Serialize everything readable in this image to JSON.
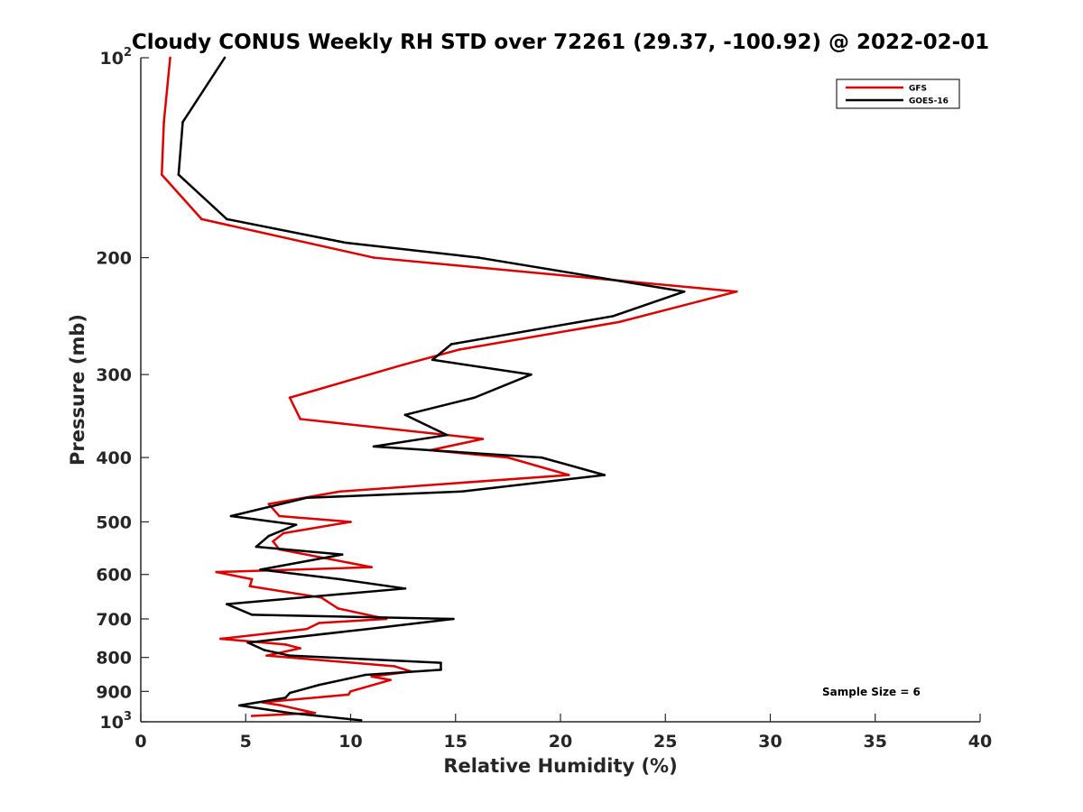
{
  "chart_data": {
    "type": "line",
    "title": "Cloudy CONUS Weekly RH STD over 72261 (29.37, -100.92) @ 2022-02-01",
    "xlabel": "Relative Humidity (%)",
    "ylabel": "Pressure (mb)",
    "xlim": [
      0,
      40
    ],
    "ylim": [
      100,
      1000
    ],
    "y_scale": "log",
    "y_reversed": true,
    "grid": false,
    "legend_position": "top-right",
    "x_ticks": [
      "0",
      "5",
      "10",
      "15",
      "20",
      "25",
      "30",
      "35",
      "40"
    ],
    "y_ticks": [
      {
        "value": 100,
        "base": "10",
        "exp": "2"
      },
      {
        "value": 200,
        "label": "200"
      },
      {
        "value": 300,
        "label": "300"
      },
      {
        "value": 400,
        "label": "400"
      },
      {
        "value": 500,
        "label": "500"
      },
      {
        "value": 600,
        "label": "600"
      },
      {
        "value": 700,
        "label": "700"
      },
      {
        "value": 800,
        "label": "800"
      },
      {
        "value": 900,
        "label": "900"
      },
      {
        "value": 1000,
        "base": "10",
        "exp": "3"
      }
    ],
    "annotation": "Sample Size = 6",
    "series": [
      {
        "name": "GFS",
        "color": "#dd0000",
        "points": [
          [
            1.4,
            100
          ],
          [
            1.1,
            125
          ],
          [
            1.0,
            150
          ],
          [
            2.9,
            175
          ],
          [
            11.1,
            200
          ],
          [
            28.4,
            225
          ],
          [
            22.8,
            250
          ],
          [
            15.2,
            275
          ],
          [
            12.5,
            290
          ],
          [
            7.1,
            325
          ],
          [
            7.6,
            350
          ],
          [
            16.3,
            375
          ],
          [
            13.8,
            390
          ],
          [
            17.5,
            400
          ],
          [
            20.4,
            425
          ],
          [
            9.5,
            450
          ],
          [
            6.1,
            470
          ],
          [
            6.6,
            490
          ],
          [
            10.0,
            500
          ],
          [
            6.8,
            520
          ],
          [
            6.3,
            535
          ],
          [
            6.6,
            550
          ],
          [
            11.0,
            585
          ],
          [
            3.6,
            595
          ],
          [
            5.3,
            610
          ],
          [
            5.2,
            625
          ],
          [
            8.6,
            650
          ],
          [
            9.4,
            675
          ],
          [
            11.7,
            700
          ],
          [
            8.5,
            710
          ],
          [
            7.9,
            725
          ],
          [
            3.8,
            750
          ],
          [
            6.9,
            765
          ],
          [
            7.6,
            775
          ],
          [
            6.0,
            795
          ],
          [
            12.1,
            825
          ],
          [
            12.9,
            840
          ],
          [
            11.0,
            855
          ],
          [
            11.9,
            865
          ],
          [
            10.0,
            900
          ],
          [
            9.9,
            910
          ],
          [
            5.8,
            935
          ],
          [
            6.7,
            945
          ],
          [
            8.3,
            970
          ],
          [
            5.3,
            980
          ]
        ]
      },
      {
        "name": "GOES-16",
        "color": "#000000",
        "points": [
          [
            4.0,
            100
          ],
          [
            2.0,
            125
          ],
          [
            1.8,
            150
          ],
          [
            4.1,
            175
          ],
          [
            9.8,
            190
          ],
          [
            16.1,
            200
          ],
          [
            25.9,
            225
          ],
          [
            22.5,
            245
          ],
          [
            14.8,
            270
          ],
          [
            13.9,
            285
          ],
          [
            18.6,
            300
          ],
          [
            15.9,
            325
          ],
          [
            12.6,
            345
          ],
          [
            14.6,
            370
          ],
          [
            11.1,
            385
          ],
          [
            19.1,
            400
          ],
          [
            22.1,
            425
          ],
          [
            15.3,
            450
          ],
          [
            7.9,
            460
          ],
          [
            4.3,
            490
          ],
          [
            7.4,
            505
          ],
          [
            6.1,
            525
          ],
          [
            5.5,
            545
          ],
          [
            9.6,
            560
          ],
          [
            5.7,
            590
          ],
          [
            9.5,
            610
          ],
          [
            12.6,
            630
          ],
          [
            4.1,
            665
          ],
          [
            5.3,
            690
          ],
          [
            14.9,
            700
          ],
          [
            10.8,
            725
          ],
          [
            5.1,
            760
          ],
          [
            5.9,
            780
          ],
          [
            7.1,
            795
          ],
          [
            14.3,
            815
          ],
          [
            14.3,
            835
          ],
          [
            10.7,
            850
          ],
          [
            8.5,
            880
          ],
          [
            7.1,
            905
          ],
          [
            6.9,
            920
          ],
          [
            4.7,
            945
          ],
          [
            7.1,
            970
          ],
          [
            10.5,
            995
          ]
        ]
      }
    ]
  }
}
